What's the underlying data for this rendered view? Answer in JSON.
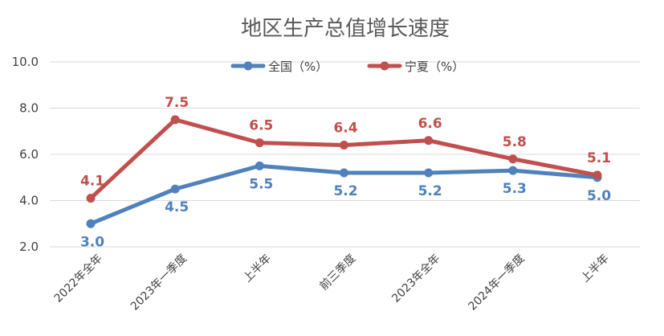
{
  "chart_data": {
    "type": "line",
    "title": "地区生产总值增长速度",
    "categories": [
      "2022年全年",
      "2023年一季度",
      "上半年",
      "前三季度",
      "2023年全年",
      "2024年一季度",
      "上半年"
    ],
    "series": [
      {
        "name": "全国（%）",
        "color": "#4f81bd",
        "values": [
          3.0,
          4.5,
          5.5,
          5.2,
          5.2,
          5.3,
          5.0
        ],
        "labels": [
          "3.0",
          "4.5",
          "5.5",
          "5.2",
          "5.2",
          "5.3",
          "5.0"
        ]
      },
      {
        "name": "宁夏（%）",
        "color": "#c0504d",
        "values": [
          4.1,
          7.5,
          6.5,
          6.4,
          6.6,
          5.8,
          5.1
        ],
        "labels": [
          "4.1",
          "7.5",
          "6.5",
          "6.4",
          "6.6",
          "5.8",
          "5.1"
        ]
      }
    ],
    "yticks": [
      "2.0",
      "4.0",
      "6.0",
      "8.0",
      "10.0"
    ],
    "ylim": [
      2.0,
      10.0
    ],
    "xlabel": "",
    "ylabel": "",
    "grid": true,
    "legend": "top-center"
  }
}
